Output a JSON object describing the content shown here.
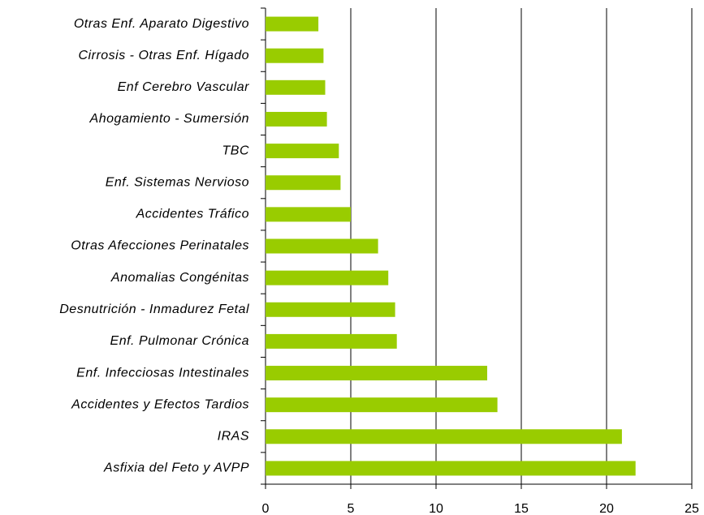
{
  "chart_data": {
    "type": "barh",
    "categories": [
      "Otras Enf. Aparato Digestivo",
      "Cirrosis - Otras Enf. Hígado",
      "Enf Cerebro Vascular",
      "Ahogamiento - Sumersión",
      "TBC",
      "Enf. Sistemas Nervioso",
      "Accidentes Tráfico",
      "Otras Afecciones Perinatales",
      "Anomalias Congénitas",
      "Desnutrición - Inmadurez Fetal",
      "Enf. Pulmonar Crónica",
      "Enf. Infecciosas Intestinales",
      "Accidentes y Efectos Tardios",
      "IRAS",
      "Asfixia del Feto y AVPP"
    ],
    "values": [
      3.1,
      3.4,
      3.5,
      3.6,
      4.3,
      4.4,
      5.0,
      6.6,
      7.2,
      7.6,
      7.7,
      13.0,
      13.6,
      20.9,
      21.7
    ],
    "color": "#99cc00",
    "xlim": [
      0,
      25
    ],
    "xticks": [
      0,
      5,
      10,
      15,
      20,
      25
    ],
    "grid": true
  }
}
